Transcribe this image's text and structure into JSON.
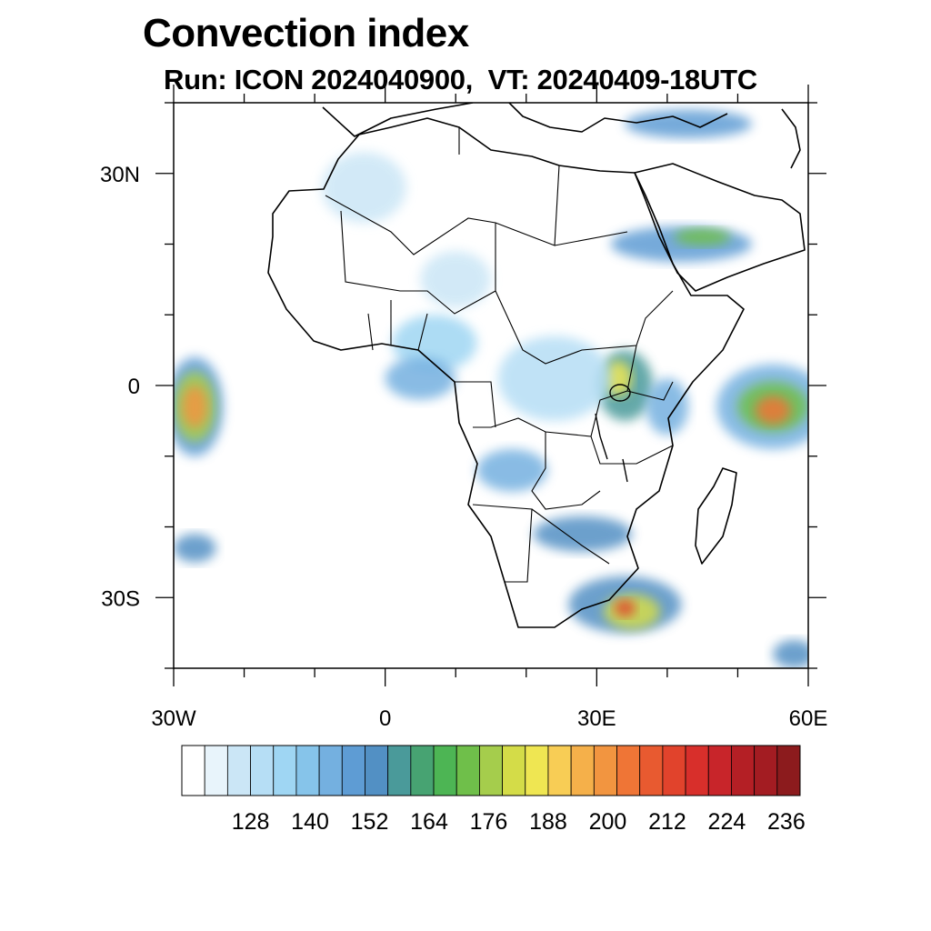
{
  "title": "Convection index",
  "subtitle": "Run: ICON 2024040900,  VT: 20240409-18UTC",
  "map": {
    "lon_range": [
      -30,
      60
    ],
    "lat_range": [
      -40,
      40
    ],
    "x_ticks": [
      {
        "lon": -30,
        "label": "30W"
      },
      {
        "lon": 0,
        "label": "0"
      },
      {
        "lon": 30,
        "label": "30E"
      },
      {
        "lon": 60,
        "label": "60E"
      }
    ],
    "y_ticks": [
      {
        "lat": 30,
        "label": "30N"
      },
      {
        "lat": 0,
        "label": "0"
      },
      {
        "lat": -30,
        "label": "30S"
      }
    ],
    "minor_step_deg": 10,
    "coastline_color": "#000000",
    "convection_cells": [
      {
        "lon": -27,
        "lat": -3,
        "rx": 4,
        "ry": 7,
        "level": 7
      },
      {
        "lon": -27,
        "lat": -3,
        "rx": 3,
        "ry": 5,
        "level": 13
      },
      {
        "lon": -27,
        "lat": -3,
        "rx": 1.8,
        "ry": 3,
        "level": 18
      },
      {
        "lon": -27,
        "lat": -23,
        "rx": 3,
        "ry": 2,
        "level": 8
      },
      {
        "lon": 55,
        "lat": -3,
        "rx": 8,
        "ry": 6,
        "level": 6
      },
      {
        "lon": 55,
        "lat": -3,
        "rx": 5,
        "ry": 3.5,
        "level": 12
      },
      {
        "lon": 55,
        "lat": -3.5,
        "rx": 2.5,
        "ry": 2,
        "level": 19
      },
      {
        "lon": 34,
        "lat": 0,
        "rx": 4,
        "ry": 5,
        "level": 9
      },
      {
        "lon": 33,
        "lat": 1,
        "rx": 2,
        "ry": 2.5,
        "level": 15
      },
      {
        "lon": 34,
        "lat": -31,
        "rx": 8,
        "ry": 4,
        "level": 8
      },
      {
        "lon": 35,
        "lat": -32,
        "rx": 4,
        "ry": 2.5,
        "level": 14
      },
      {
        "lon": 34,
        "lat": -31.5,
        "rx": 1.5,
        "ry": 1.2,
        "level": 21
      },
      {
        "lon": 28,
        "lat": -21,
        "rx": 7,
        "ry": 2.5,
        "level": 8
      },
      {
        "lon": 18,
        "lat": -12,
        "rx": 5,
        "ry": 3,
        "level": 6
      },
      {
        "lon": 42,
        "lat": 20,
        "rx": 10,
        "ry": 2.5,
        "level": 7
      },
      {
        "lon": 45,
        "lat": 21,
        "rx": 4,
        "ry": 1.2,
        "level": 12
      },
      {
        "lon": 43,
        "lat": 37,
        "rx": 9,
        "ry": 2,
        "level": 7
      },
      {
        "lon": 7,
        "lat": 6,
        "rx": 6,
        "ry": 4,
        "level": 4
      },
      {
        "lon": 5,
        "lat": 1,
        "rx": 5,
        "ry": 3,
        "level": 6
      },
      {
        "lon": 24,
        "lat": 1,
        "rx": 8,
        "ry": 6,
        "level": 3
      },
      {
        "lon": 58,
        "lat": -38,
        "rx": 3,
        "ry": 2,
        "level": 8
      },
      {
        "lon": 40,
        "lat": -3,
        "rx": 3,
        "ry": 4,
        "level": 6
      },
      {
        "lon": -3,
        "lat": 28,
        "rx": 6,
        "ry": 5,
        "level": 2
      },
      {
        "lon": 10,
        "lat": 15,
        "rx": 5,
        "ry": 4,
        "level": 2
      }
    ]
  },
  "colorbar": {
    "colors": [
      "#ffffff",
      "#e8f4fb",
      "#cbe6f6",
      "#b6def5",
      "#9fd6f3",
      "#86c4ea",
      "#74b0e0",
      "#5e9cd4",
      "#5290c4",
      "#4a9a9a",
      "#47a372",
      "#4db554",
      "#6fbf4a",
      "#a5cd4c",
      "#d4dc48",
      "#efe652",
      "#f8cd55",
      "#f5b04a",
      "#f29540",
      "#ef7536",
      "#e85a30",
      "#e1432c",
      "#d82f2b",
      "#c8252a",
      "#b41f25",
      "#a31c22",
      "#8c1b1d"
    ],
    "labels": [
      "128",
      "140",
      "152",
      "164",
      "176",
      "188",
      "200",
      "212",
      "224",
      "236"
    ]
  }
}
